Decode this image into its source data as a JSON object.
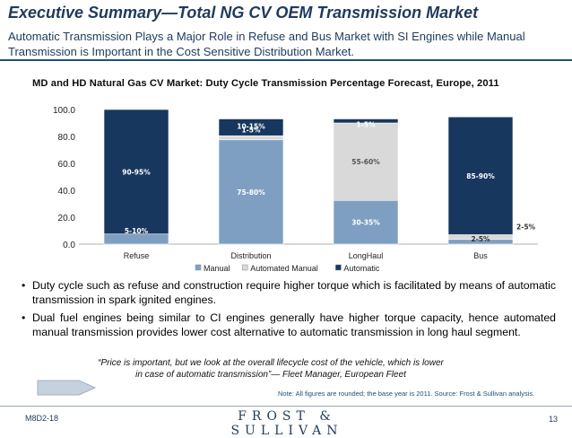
{
  "header": {
    "title": "Executive Summary—Total NG CV OEM Transmission Market",
    "subtitle": "Automatic Transmission Plays a Major Role in Refuse and Bus Market with SI Engines while Manual Transmission is Important in the Cost Sensitive Distribution Market."
  },
  "colors": {
    "manual": "#7f9fc2",
    "automated_manual": "#d9d9d9",
    "automatic": "#17375e",
    "title": "#1f3a5c"
  },
  "chart_data": {
    "type": "bar",
    "stacked": true,
    "title": "MD and HD Natural Gas CV  Market: Duty Cycle Transmission Percentage Forecast, Europe, 2011",
    "categories": [
      "Refuse",
      "Distribution",
      "LongHaul",
      "Bus"
    ],
    "ylim": [
      0,
      100
    ],
    "yticks": [
      "0.0",
      "20.0",
      "40.0",
      "60.0",
      "80.0",
      "100.0"
    ],
    "legend_position": "bottom",
    "series": [
      {
        "name": "Manual",
        "values": [
          7.5,
          77.5,
          32.5,
          3.5
        ],
        "labels": [
          "5-10%",
          "75-80%",
          "30-35%",
          "2-5%"
        ]
      },
      {
        "name": "Automated Manual",
        "values": [
          0,
          3,
          57.5,
          3.5
        ],
        "labels": [
          "",
          "1-5%",
          "55-60%",
          "2-5%"
        ]
      },
      {
        "name": "Automatic",
        "values": [
          92.5,
          12.5,
          3,
          87.5
        ],
        "labels": [
          "90-95%",
          "10-15%",
          "1-5%",
          "85-90%"
        ]
      }
    ]
  },
  "bullets": [
    "Duty cycle such as refuse and construction require higher torque which is facilitated by means of automatic transmission in spark ignited engines.",
    "Dual fuel engines being similar to CI engines generally have higher torque capacity, hence automated manual transmission provides lower cost alternative to automatic transmission in long haul segment."
  ],
  "quote": "“Price is important, but we look at the overall lifecycle cost of the vehicle, which is lower in case of automatic transmission”— Fleet Manager, European Fleet",
  "note": "Note: All figures are rounded; the base year is 2011. Source: Frost & Sullivan analysis.",
  "footer": {
    "code": "M8D2-18",
    "brand": "FROST & SULLIVAN",
    "page": "13"
  }
}
